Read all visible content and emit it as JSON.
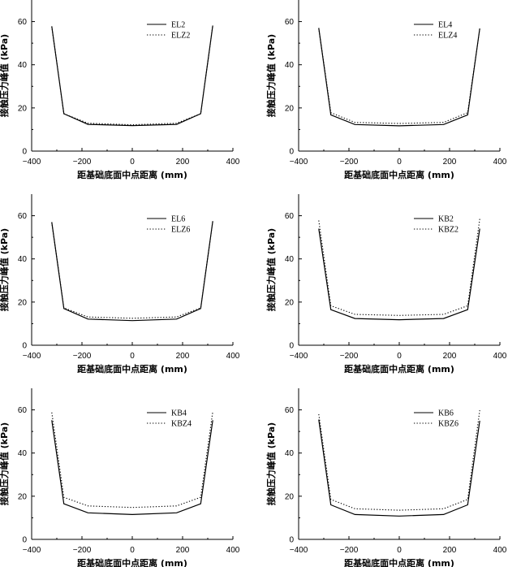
{
  "chart_data": [
    {
      "type": "line",
      "x": [
        -320,
        -272,
        -176,
        0,
        176,
        272,
        320
      ],
      "series": [
        {
          "name": "EL2",
          "style": "solid",
          "values": [
            57.8,
            17.3,
            12.4,
            11.8,
            12.4,
            17.3,
            58.2
          ]
        },
        {
          "name": "ELZ2",
          "style": "dotted",
          "values": [
            57.8,
            17.3,
            12.9,
            12.2,
            12.9,
            17.3,
            58.2
          ]
        }
      ],
      "xlabel": "距基础底面中点距离 (mm)",
      "ylabel": "接触压力峰值 (kPa)",
      "xlim": [
        -400,
        400
      ],
      "ylim": [
        0,
        70
      ],
      "xticks": [
        "−400",
        "−200",
        "0",
        "200",
        "400"
      ],
      "yticks": [
        "0",
        "20",
        "40",
        "60"
      ],
      "legend": "top-right"
    },
    {
      "type": "line",
      "x": [
        -320,
        -272,
        -176,
        0,
        176,
        272,
        320
      ],
      "series": [
        {
          "name": "EL4",
          "style": "solid",
          "values": [
            57.0,
            16.8,
            12.3,
            11.7,
            12.3,
            16.8,
            56.8
          ]
        },
        {
          "name": "ELZ4",
          "style": "dotted",
          "values": [
            57.0,
            17.8,
            13.3,
            12.8,
            13.3,
            17.8,
            56.8
          ]
        }
      ],
      "xlabel": "距基础底面中点距离 (mm)",
      "ylabel": "接触压力峰值 (kPa)",
      "xlim": [
        -400,
        400
      ],
      "ylim": [
        0,
        70
      ],
      "xticks": [
        "−400",
        "−200",
        "0",
        "200",
        "400"
      ],
      "yticks": [
        "0",
        "20",
        "40",
        "60"
      ],
      "legend": "top-right"
    },
    {
      "type": "line",
      "x": [
        -320,
        -272,
        -176,
        0,
        176,
        272,
        320
      ],
      "series": [
        {
          "name": "EL6",
          "style": "solid",
          "values": [
            57.0,
            17.0,
            12.1,
            11.4,
            12.1,
            17.0,
            57.5
          ]
        },
        {
          "name": "ELZ6",
          "style": "dotted",
          "values": [
            57.0,
            17.3,
            13.1,
            12.5,
            13.1,
            17.3,
            57.5
          ]
        }
      ],
      "xlabel": "距基础底面中点距离 (mm)",
      "ylabel": "接触压力峰值 (kPa)",
      "xlim": [
        -400,
        400
      ],
      "ylim": [
        0,
        70
      ],
      "xticks": [
        "−400",
        "−200",
        "0",
        "200",
        "400"
      ],
      "yticks": [
        "0",
        "20",
        "40",
        "60"
      ],
      "legend": "top-right"
    },
    {
      "type": "line",
      "x": [
        -320,
        -272,
        -176,
        0,
        176,
        272,
        320
      ],
      "series": [
        {
          "name": "KB2",
          "style": "solid",
          "values": [
            54.0,
            16.5,
            12.4,
            11.8,
            12.4,
            16.5,
            54.0
          ]
        },
        {
          "name": "KBZ2",
          "style": "dotted",
          "values": [
            57.8,
            18.3,
            14.3,
            13.8,
            14.3,
            18.3,
            58.5
          ]
        }
      ],
      "xlabel": "距基础底面中点距离 (mm)",
      "ylabel": "接触压力峰值 (kPa)",
      "xlim": [
        -400,
        400
      ],
      "ylim": [
        0,
        70
      ],
      "xticks": [
        "−400",
        "−200",
        "0",
        "200",
        "400"
      ],
      "yticks": [
        "0",
        "20",
        "40",
        "60"
      ],
      "legend": "top-right"
    },
    {
      "type": "line",
      "x": [
        -320,
        -272,
        -176,
        0,
        176,
        272,
        320
      ],
      "series": [
        {
          "name": "KB4",
          "style": "solid",
          "values": [
            55.2,
            16.5,
            12.3,
            11.5,
            12.3,
            16.5,
            55.2
          ]
        },
        {
          "name": "KBZ4",
          "style": "dotted",
          "values": [
            58.8,
            19.5,
            15.5,
            14.8,
            15.5,
            19.5,
            59.2
          ]
        }
      ],
      "xlabel": "距基础底面中点距离 (mm)",
      "ylabel": "接触压力峰值 (kPa)",
      "xlim": [
        -400,
        400
      ],
      "ylim": [
        0,
        70
      ],
      "xticks": [
        "−400",
        "−200",
        "0",
        "200",
        "400"
      ],
      "yticks": [
        "0",
        "20",
        "40",
        "60"
      ],
      "legend": "top-right"
    },
    {
      "type": "line",
      "x": [
        -320,
        -272,
        -176,
        0,
        176,
        272,
        320
      ],
      "series": [
        {
          "name": "KB6",
          "style": "solid",
          "values": [
            55.5,
            16.0,
            11.5,
            10.8,
            11.5,
            16.0,
            55.0
          ]
        },
        {
          "name": "KBZ6",
          "style": "dotted",
          "values": [
            58.0,
            18.5,
            14.2,
            13.5,
            14.2,
            18.5,
            59.8
          ]
        }
      ],
      "xlabel": "距基础底面中点距离 (mm)",
      "ylabel": "接触压力峰值 (kPa)",
      "xlim": [
        -400,
        400
      ],
      "ylim": [
        0,
        70
      ],
      "xticks": [
        "−400",
        "−200",
        "0",
        "200",
        "400"
      ],
      "yticks": [
        "0",
        "20",
        "40",
        "60"
      ],
      "legend": "top-right"
    }
  ]
}
